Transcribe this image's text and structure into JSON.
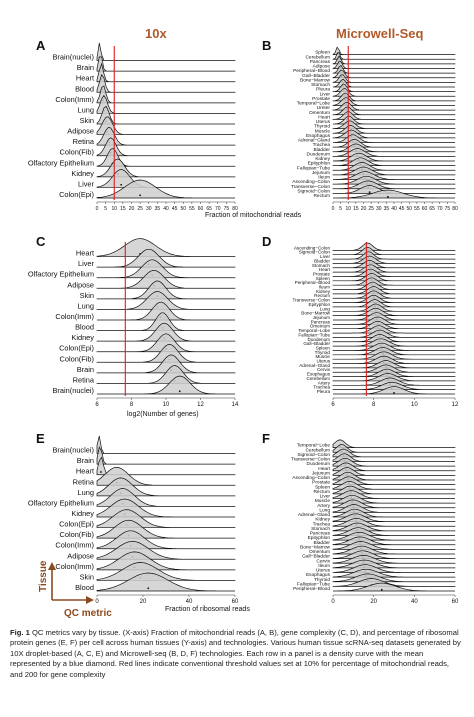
{
  "header_10x": "10x",
  "header_mw": "Microwell-Seq",
  "colors": {
    "header": "#b05a2c",
    "threshold": "#e31a1c",
    "fill": "#cfcfcf",
    "axis_arrow": "#8a4a20"
  },
  "axis_labels": {
    "mito": "Fraction of mitochondrial reads",
    "genes": "log2(Number of genes)",
    "ribo": "Fraction of ribosomal reads",
    "tissue": "Tissue",
    "qc_metric": "QC metric"
  },
  "caption": {
    "label": "Fig. 1",
    "text": "QC metrics vary by tissue. (X-axis) Fraction of mitochondrial reads (A, B), gene complexity (C, D), and percentage of ribosomal protein genes (E, F) per cell across human tissues (Y-axis) and technologies. Various human tissue scRNA-seq datasets generated by 10X droplet-based (A, C, E) and Microwell-seq (B, D, F) technologies. Each row in a panel is a density curve with the mean represented by a blue diamond. Red lines indicate conventional threshold values set at 10% for percentage of mitochondrial reads, and 200 for gene complexity"
  },
  "chart_data": [
    {
      "panel": "A",
      "type": "ridgeline",
      "xlabel": "Fraction of mitochondrial reads",
      "xlim": [
        0,
        80
      ],
      "xticks": [
        "0",
        "5",
        "10",
        "15",
        "20",
        "25",
        "30",
        "35",
        "40",
        "45",
        "50",
        "55",
        "60",
        "65",
        "70",
        "75",
        "80"
      ],
      "threshold": 10,
      "rows": [
        "Brain(nuclei)",
        "Brain",
        "Heart",
        "Blood",
        "Colon(Imm)",
        "Lung",
        "Skin",
        "Adipose",
        "Retina",
        "Colon(Fib)",
        "Olfactory Epithelium",
        "Kidney",
        "Liver",
        "Colon(Epi)"
      ],
      "means": [
        1.5,
        2,
        2.5,
        3,
        3.5,
        4,
        5,
        6,
        7,
        8,
        9,
        12,
        14,
        25
      ],
      "sds": [
        0.8,
        1,
        1.2,
        1.5,
        1.5,
        2,
        2,
        3,
        3,
        3,
        3,
        4,
        5,
        9
      ]
    },
    {
      "panel": "B",
      "type": "ridgeline",
      "xlabel": "",
      "xlim": [
        0,
        80
      ],
      "xticks": [
        "0",
        "5",
        "10",
        "15",
        "20",
        "25",
        "30",
        "35",
        "40",
        "45",
        "50",
        "55",
        "60",
        "65",
        "70",
        "75",
        "80"
      ],
      "threshold": 10,
      "rows": [
        "Spleen",
        "Cerebellum",
        "Pancreas",
        "Adipose",
        "Peripheral−Blood",
        "Gall−Bladder",
        "Bone−Marrow",
        "Stomach",
        "Pleura",
        "Liver",
        "Prostate",
        "Temporal−Lobe",
        "Ureter",
        "Omentum",
        "Heart",
        "Uterus",
        "Thyroid",
        "Muscle",
        "Esophagus",
        "Adrenal−Gland",
        "Trachea",
        "Bladder",
        "Duodenum",
        "Kidney",
        "Epityphlon",
        "Fallopian−Tube",
        "Jejunum",
        "Ileum",
        "Ascending−Colon",
        "Transverse−Colon",
        "Sigmoid−Colon",
        "Rectum"
      ],
      "means": [
        3,
        3.5,
        4,
        4.5,
        5,
        5.5,
        6,
        6.5,
        7,
        7.5,
        8,
        8.5,
        9,
        9.5,
        10,
        10.5,
        11,
        11.5,
        12,
        13,
        14,
        15,
        16,
        17,
        18,
        19,
        20,
        21,
        22,
        23,
        24,
        36
      ],
      "sds": [
        1,
        1,
        1.2,
        1.5,
        1.5,
        2,
        2,
        2,
        2,
        2.5,
        2.5,
        3,
        3,
        3,
        3,
        3,
        3.5,
        3.5,
        4,
        4,
        4,
        4.5,
        5,
        5,
        5,
        5,
        5.5,
        6,
        6,
        6,
        6,
        10
      ]
    },
    {
      "panel": "C",
      "type": "ridgeline",
      "xlabel": "log2(Number of genes)",
      "xlim": [
        6,
        14
      ],
      "xticks": [
        "6",
        "8",
        "10",
        "12",
        "14"
      ],
      "threshold": 7.64,
      "rows": [
        "Heart",
        "Liver",
        "Olfactory Epithelium",
        "Adipose",
        "Skin",
        "Lung",
        "Colon(Imm)",
        "Blood",
        "Kidney",
        "Colon(Epi)",
        "Colon(Fib)",
        "Brain",
        "Retina",
        "Brain(nuclei)"
      ],
      "means": [
        8.5,
        9,
        9.2,
        9.3,
        9.5,
        9.5,
        9.7,
        9.8,
        9.9,
        10,
        10.2,
        10.3,
        10.5,
        10.8
      ],
      "sds": [
        0.9,
        0.6,
        0.6,
        0.6,
        0.5,
        0.6,
        0.5,
        0.4,
        0.5,
        0.5,
        0.5,
        0.5,
        0.5,
        0.6
      ]
    },
    {
      "panel": "D",
      "type": "ridgeline",
      "xlabel": "",
      "xlim": [
        6,
        12
      ],
      "xticks": [
        "6",
        "8",
        "10",
        "12"
      ],
      "threshold": 7.64,
      "rows": [
        "Ascending−Colon",
        "Sigmoid−Colon",
        "Liver",
        "Bladder",
        "Stomach",
        "Heart",
        "Prostate",
        "Spleen",
        "Peripheral−Blood",
        "Ileum",
        "Kidney",
        "Rectum",
        "Transverse−Colon",
        "Epityphlon",
        "Lung",
        "Bone−Marrow",
        "Jejunum",
        "Pancreas",
        "Omentum",
        "Temporal−Lobe",
        "Fallopian−Tube",
        "Duodenum",
        "Gall−Bladder",
        "Spleen",
        "Thyroid",
        "Muscle",
        "Uterus",
        "Adrenal−Gland",
        "Cervix",
        "Esophagus",
        "Cerebellum",
        "Artery",
        "Trachea",
        "Pleura"
      ],
      "means": [
        7.7,
        7.7,
        7.75,
        7.8,
        7.8,
        7.85,
        7.85,
        7.9,
        7.9,
        7.95,
        8,
        8,
        8,
        8.05,
        8.1,
        8.1,
        8.15,
        8.2,
        8.2,
        8.25,
        8.3,
        8.3,
        8.35,
        8.4,
        8.45,
        8.5,
        8.5,
        8.6,
        8.6,
        8.65,
        8.7,
        8.8,
        8.9,
        9
      ],
      "sds": [
        0.25,
        0.25,
        0.25,
        0.3,
        0.3,
        0.3,
        0.3,
        0.3,
        0.3,
        0.3,
        0.3,
        0.3,
        0.3,
        0.3,
        0.3,
        0.35,
        0.35,
        0.35,
        0.35,
        0.35,
        0.35,
        0.35,
        0.4,
        0.4,
        0.4,
        0.4,
        0.4,
        0.4,
        0.4,
        0.4,
        0.45,
        0.45,
        0.5,
        0.5
      ]
    },
    {
      "panel": "E",
      "type": "ridgeline",
      "xlabel": "Fraction of ribosomal reads",
      "xlim": [
        0,
        70
      ],
      "xticks": [
        "0",
        "20",
        "40",
        "60"
      ],
      "threshold": null,
      "rows": [
        "Brain(nuclei)",
        "Brain",
        "Heart",
        "Retina",
        "Lung",
        "Olfactory Epithelium",
        "Kidney",
        "Colon(Epi)",
        "Colon(Fib)",
        "Colon(Imm)",
        "Adipose",
        "Colon(Imm)",
        "Skin",
        "Blood"
      ],
      "means": [
        1,
        1.5,
        2,
        10,
        12,
        13,
        14,
        15,
        16,
        17,
        18,
        19,
        22,
        26
      ],
      "sds": [
        0.8,
        1,
        1.2,
        6,
        6,
        6,
        7,
        7,
        7,
        7,
        8,
        8,
        9,
        10
      ]
    },
    {
      "panel": "F",
      "type": "ridgeline",
      "xlabel": "",
      "xlim": [
        0,
        70
      ],
      "xticks": [
        "0",
        "20",
        "40",
        "60"
      ],
      "threshold": null,
      "rows": [
        "Temporal−Lobe",
        "Cerebellum",
        "Sigmoid−Colon",
        "Transverse−Colon",
        "Duodenum",
        "Heart",
        "Jejunum",
        "Ascending−Colon",
        "Prostate",
        "Spleen",
        "Rectum",
        "Liver",
        "Muscle",
        "Artery",
        "Lung",
        "Adrenal−Gland",
        "Kidney",
        "Trachea",
        "Stomach",
        "Pancreas",
        "Epityphlon",
        "Bladder",
        "Bone−Marrow",
        "Omentum",
        "Gall−Bladder",
        "Cervix",
        "Ileum",
        "Uterus",
        "Esophagus",
        "Thyroid",
        "Fallopian−Tube",
        "Peripheral−Blood"
      ],
      "means": [
        4,
        5,
        6,
        6.5,
        7,
        7.5,
        8,
        8.5,
        9,
        9.5,
        10,
        10.5,
        11,
        11.5,
        12,
        12.5,
        13,
        13.5,
        14,
        14.5,
        15,
        15.5,
        16,
        16.5,
        17,
        17.5,
        18,
        18.5,
        19,
        20,
        22,
        28
      ],
      "sds": [
        3,
        3,
        3.5,
        3.5,
        4,
        4,
        4,
        4,
        4.5,
        4.5,
        4.5,
        5,
        5,
        5,
        5,
        5,
        5.5,
        5.5,
        5.5,
        5.5,
        6,
        6,
        6,
        6,
        6,
        6.5,
        6.5,
        6.5,
        7,
        7,
        7,
        8
      ]
    }
  ]
}
